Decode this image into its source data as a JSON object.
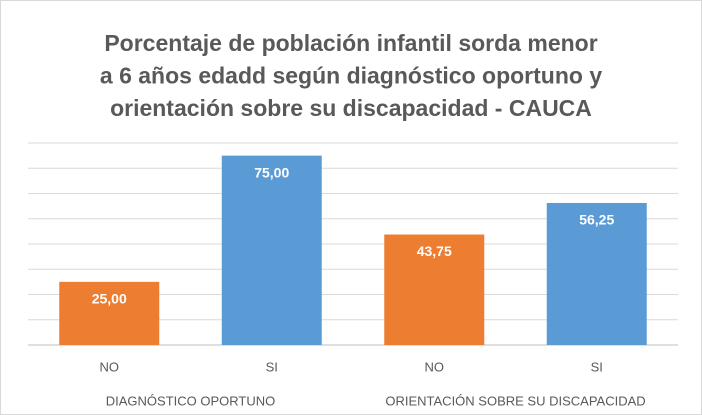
{
  "chart_data": {
    "type": "bar",
    "title": [
      "Porcentaje de población infantil sorda menor",
      "a 6 años edadd según diagnóstico oportuno y",
      "orientación sobre su discapacidad - CAUCA"
    ],
    "groups": [
      "DIAGNÓSTICO OPORTUNO",
      "ORIENTACIÓN SOBRE SU DISCAPACIDAD"
    ],
    "categories": [
      "NO",
      "SI",
      "NO",
      "SI"
    ],
    "values": [
      25,
      75,
      43.75,
      56.25
    ],
    "value_labels": [
      "25,00",
      "75,00",
      "43,75",
      "56,25"
    ],
    "colors": [
      "#ed7d31",
      "#5b9bd5",
      "#ed7d31",
      "#5b9bd5"
    ],
    "ylim": [
      0,
      80
    ],
    "yticks": [
      0,
      10,
      20,
      30,
      40,
      50,
      60,
      70,
      80
    ],
    "grid": true
  }
}
